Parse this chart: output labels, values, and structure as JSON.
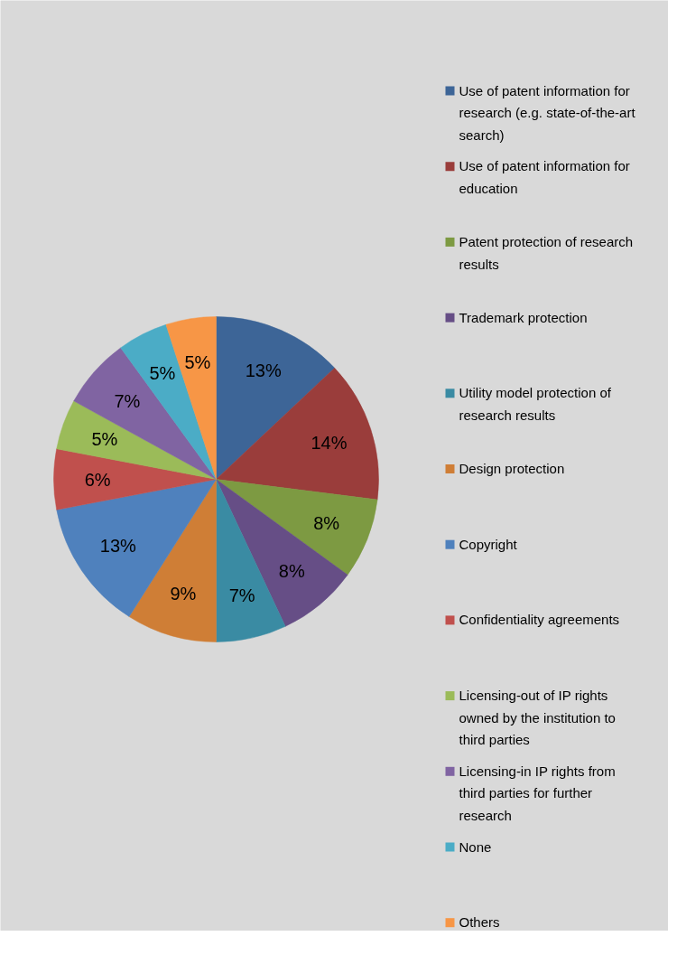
{
  "chart_data": {
    "type": "pie",
    "categories": [
      "Use of patent information for research (e.g. state-of-the-art search)",
      "Use of patent information for education",
      "Patent protection of research results",
      "Trademark protection",
      "Utility model protection of research results",
      "Design protection",
      "Copyright",
      "Confidentiality agreements",
      "Licensing-out of IP rights owned by the institution to third parties",
      "Licensing-in IP rights from third parties for further research",
      "None",
      "Others"
    ],
    "values": [
      13,
      14,
      8,
      8,
      7,
      9,
      13,
      6,
      5,
      7,
      5,
      5
    ],
    "value_labels": [
      "13%",
      "14%",
      "8%",
      "8%",
      "7%",
      "9%",
      "13%",
      "6%",
      "5%",
      "7%",
      "5%",
      "5%"
    ],
    "colors": [
      "#3d6597",
      "#9a3d3b",
      "#7d9a42",
      "#664e86",
      "#3a8ba3",
      "#cf7e36",
      "#4f81bd",
      "#c0504d",
      "#9bbb59",
      "#8064a2",
      "#4bacc6",
      "#f79646"
    ],
    "legend": "right"
  }
}
